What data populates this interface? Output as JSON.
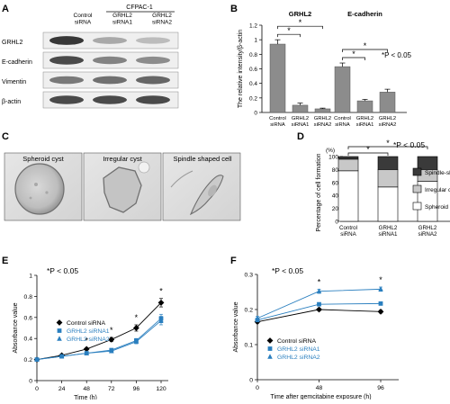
{
  "panels": {
    "A": {
      "label": "A",
      "cell_line": "CFPAC-1",
      "lanes": [
        "Control\nsiRNA",
        "GRHL2\nsiRNA1",
        "GRHL2\nsiRNA2"
      ],
      "rows": [
        {
          "name": "GRHL2",
          "band": [
            0.95,
            0.35,
            0.25
          ]
        },
        {
          "name": "E-cadherin",
          "band": [
            0.85,
            0.55,
            0.5
          ]
        },
        {
          "name": "Vimentin",
          "band": [
            0.6,
            0.65,
            0.7
          ]
        },
        {
          "name": "β-actin",
          "band": [
            0.85,
            0.85,
            0.85
          ]
        }
      ]
    },
    "B": {
      "label": "B"
    },
    "C": {
      "label": "C",
      "images": [
        {
          "caption": "Spheroid cyst"
        },
        {
          "caption": "Irregular cyst"
        },
        {
          "caption": "Spindle shaped cell"
        }
      ]
    },
    "D": {
      "label": "D"
    },
    "E": {
      "label": "E"
    },
    "F": {
      "label": "F"
    }
  },
  "colors": {
    "black": "#000000",
    "blue": "#2a7fbf",
    "bar_gray": "#8c8c8c",
    "light_gray": "#c8c8c8",
    "dark_gray": "#3a3a3a",
    "white": "#ffffff"
  },
  "chart_data": [
    {
      "panel": "B",
      "type": "bar",
      "ylabel": "The relative intensity/β-actin",
      "ylim": [
        0,
        1.2
      ],
      "yticks": [
        "0",
        "0.2",
        "0.4",
        "0.6",
        "0.8",
        "1",
        "1.2"
      ],
      "groups": [
        {
          "title": "GRHL2",
          "categories": [
            "Control\nsiRNA",
            "GRHL2\nsiRNA1",
            "GRHL2\nsiRNA2"
          ],
          "values": [
            0.94,
            0.1,
            0.05
          ],
          "errors": [
            0.06,
            0.03,
            0.01
          ]
        },
        {
          "title": "E-cadherin",
          "categories": [
            "Control\nsiRNA",
            "GRHL2\nsiRNA1",
            "GRHL2\nsiRNA2"
          ],
          "values": [
            0.63,
            0.16,
            0.28
          ],
          "errors": [
            0.05,
            0.02,
            0.04
          ]
        }
      ],
      "significance": "*",
      "annotation": "*P < 0.05"
    },
    {
      "panel": "D",
      "type": "bar",
      "stacked": true,
      "ylabel": "Percentage of cell formation",
      "yunit": "(%)",
      "ylim": [
        0,
        100
      ],
      "yticks": [
        "0",
        "20",
        "40",
        "60",
        "80",
        "100"
      ],
      "categories": [
        "Control\nsiRNA",
        "GRHL2\nsiRNA1",
        "GRHL2\nsiRNA2"
      ],
      "series": [
        {
          "name": "Spheroid cyst",
          "values": [
            78,
            53,
            62
          ]
        },
        {
          "name": "Irregular cyst",
          "values": [
            18,
            27,
            18
          ]
        },
        {
          "name": "Spindle-shaped",
          "values": [
            4,
            20,
            20
          ]
        }
      ],
      "significance": "*",
      "annotation": "*P < 0.05"
    },
    {
      "panel": "E",
      "type": "line",
      "xlabel": "Time  (h)",
      "ylabel": "Absorbance value",
      "x": [
        0,
        24,
        48,
        72,
        96,
        120
      ],
      "xticks": [
        "0",
        "24",
        "48",
        "72",
        "96",
        "120"
      ],
      "ylim": [
        0,
        1
      ],
      "yticks": [
        "0",
        "0.2",
        "0.4",
        "0.6",
        "0.8",
        "1"
      ],
      "series": [
        {
          "name": "Control siRNA",
          "values": [
            0.2,
            0.24,
            0.3,
            0.39,
            0.5,
            0.74
          ],
          "errors": [
            0.01,
            0.01,
            0.01,
            0.02,
            0.03,
            0.04
          ]
        },
        {
          "name": "GRHL2 siRNA1",
          "values": [
            0.2,
            0.23,
            0.26,
            0.29,
            0.38,
            0.59
          ],
          "errors": [
            0.01,
            0.01,
            0.01,
            0.01,
            0.02,
            0.04
          ]
        },
        {
          "name": "GRHL2 siRNA2",
          "values": [
            0.2,
            0.23,
            0.26,
            0.28,
            0.37,
            0.57
          ],
          "errors": [
            0.01,
            0.01,
            0.01,
            0.01,
            0.02,
            0.04
          ]
        }
      ],
      "stars_at_x": [
        48,
        72,
        96,
        120
      ],
      "annotation": "*P < 0.05"
    },
    {
      "panel": "F",
      "type": "line",
      "xlabel": "Time after gemcitabine exposure  (h)",
      "ylabel": "Absorbance value",
      "x": [
        0,
        48,
        96
      ],
      "xticks": [
        "0",
        "48",
        "96"
      ],
      "ylim": [
        0,
        0.3
      ],
      "yticks": [
        "0",
        "0.1",
        "0.2",
        "0.3"
      ],
      "series": [
        {
          "name": "Control siRNA",
          "values": [
            0.165,
            0.2,
            0.194
          ],
          "errors": [
            0.004,
            0.004,
            0.004
          ]
        },
        {
          "name": "GRHL2 siRNA1",
          "values": [
            0.17,
            0.215,
            0.217
          ],
          "errors": [
            0.004,
            0.004,
            0.004
          ]
        },
        {
          "name": "GRHL2 siRNA2",
          "values": [
            0.175,
            0.252,
            0.258
          ],
          "errors": [
            0.006,
            0.006,
            0.006
          ]
        }
      ],
      "stars_at_x": [
        48,
        96
      ],
      "annotation": "*P < 0.05"
    }
  ]
}
